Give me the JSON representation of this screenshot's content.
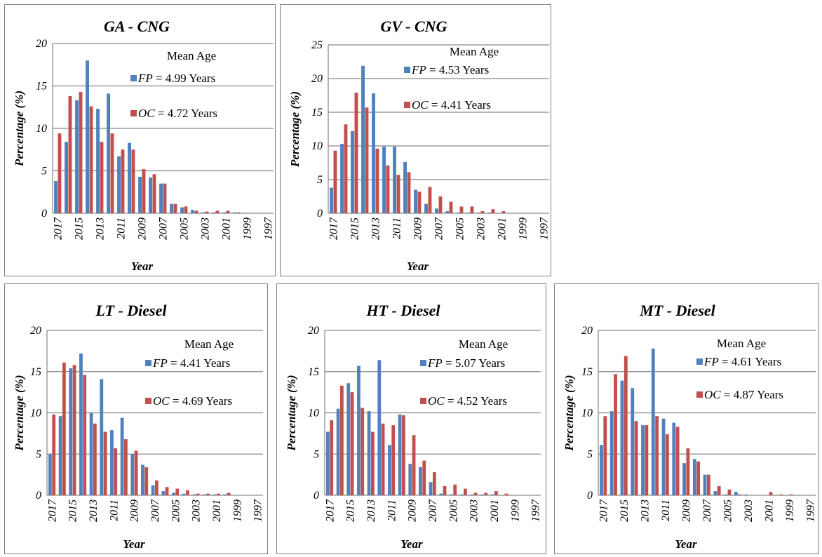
{
  "chart_data": [
    {
      "type": "bar",
      "title": "GA - CNG",
      "xlabel": "Year",
      "ylabel": "Percentage (%)",
      "ylim": [
        0,
        20
      ],
      "yticks": [
        "0",
        "5",
        "10",
        "15",
        "20"
      ],
      "grid": "horizontal",
      "categories": [
        "2017",
        "2016",
        "2015",
        "2014",
        "2013",
        "2012",
        "2011",
        "2010",
        "2009",
        "2008",
        "2007",
        "2006",
        "2005",
        "2004",
        "2003",
        "2002",
        "2001",
        "2000",
        "1999",
        "1998",
        "1997"
      ],
      "xticks_shown": [
        "2017",
        "2015",
        "2013",
        "2011",
        "2009",
        "2007",
        "2005",
        "2003",
        "2001",
        "1999",
        "1997"
      ],
      "series": [
        {
          "name": "FP",
          "color": "#4f81bd",
          "values": [
            3.8,
            8.4,
            13.3,
            18.0,
            12.3,
            14.1,
            6.7,
            8.3,
            4.3,
            4.2,
            3.5,
            1.1,
            0.7,
            0.4,
            0.1,
            0.1,
            0.1,
            0.1,
            0.0,
            0.0,
            0.0
          ]
        },
        {
          "name": "OC",
          "color": "#c0504d",
          "values": [
            9.4,
            13.8,
            14.3,
            12.6,
            8.4,
            9.4,
            7.5,
            7.5,
            5.2,
            4.6,
            3.5,
            1.1,
            0.8,
            0.3,
            0.2,
            0.3,
            0.3,
            0.1,
            0.0,
            0.0,
            0.0
          ]
        }
      ],
      "legend": {
        "position": "top-right",
        "heading": "Mean Age",
        "entries": [
          {
            "key": "FP",
            "text": "= 4.99 Years"
          },
          {
            "key": "OC",
            "text": "= 4.72 Years"
          }
        ]
      }
    },
    {
      "type": "bar",
      "title": "GV - CNG",
      "xlabel": "Year",
      "ylabel": "Percentage (%)",
      "ylim": [
        0,
        25
      ],
      "yticks": [
        "0",
        "5",
        "10",
        "15",
        "20",
        "25"
      ],
      "grid": "horizontal",
      "categories": [
        "2017",
        "2016",
        "2015",
        "2014",
        "2013",
        "2012",
        "2011",
        "2010",
        "2009",
        "2008",
        "2007",
        "2006",
        "2005",
        "2004",
        "2003",
        "2002",
        "2001",
        "2000",
        "1999",
        "1998",
        "1997"
      ],
      "xticks_shown": [
        "2017",
        "2015",
        "2013",
        "2011",
        "2009",
        "2007",
        "2005",
        "2003",
        "2001",
        "1999",
        "1997"
      ],
      "series": [
        {
          "name": "FP",
          "color": "#4f81bd",
          "values": [
            3.8,
            10.3,
            12.2,
            21.9,
            17.8,
            9.9,
            9.9,
            7.6,
            3.5,
            1.4,
            0.7,
            0.3,
            0.1,
            0.1,
            0.1,
            0.1,
            0.0,
            0.0,
            0.0,
            0.0,
            0.0
          ]
        },
        {
          "name": "OC",
          "color": "#c0504d",
          "values": [
            9.3,
            13.2,
            17.9,
            15.7,
            9.6,
            7.1,
            5.7,
            6.1,
            3.2,
            3.9,
            2.5,
            1.7,
            1.0,
            1.0,
            0.3,
            0.6,
            0.3,
            0.0,
            0.0,
            0.0,
            0.0
          ]
        }
      ],
      "legend": {
        "position": "top-right",
        "heading": "Mean Age",
        "entries": [
          {
            "key": "FP",
            "text": "= 4.53 Years"
          },
          {
            "key": "OC",
            "text": "= 4.41 Years"
          }
        ]
      }
    },
    {
      "type": "bar",
      "title": "LT - Diesel",
      "xlabel": "Year",
      "ylabel": "Percentage (%)",
      "ylim": [
        0,
        20
      ],
      "yticks": [
        "0",
        "5",
        "10",
        "15",
        "20"
      ],
      "grid": "horizontal",
      "categories": [
        "2017",
        "2016",
        "2015",
        "2014",
        "2013",
        "2012",
        "2011",
        "2010",
        "2009",
        "2008",
        "2007",
        "2006",
        "2005",
        "2004",
        "2003",
        "2002",
        "2001",
        "2000",
        "1999",
        "1998",
        "1997"
      ],
      "xticks_shown": [
        "2017",
        "2015",
        "2013",
        "2011",
        "2009",
        "2007",
        "2005",
        "2003",
        "2001",
        "1999",
        "1997"
      ],
      "series": [
        {
          "name": "FP",
          "color": "#4f81bd",
          "values": [
            5.0,
            9.6,
            15.4,
            17.2,
            10.0,
            14.1,
            7.9,
            9.4,
            5.0,
            3.7,
            1.2,
            0.5,
            0.3,
            0.2,
            0.1,
            0.1,
            0.1,
            0.1,
            0.0,
            0.0,
            0.0
          ]
        },
        {
          "name": "OC",
          "color": "#c0504d",
          "values": [
            9.8,
            16.1,
            15.8,
            14.6,
            8.7,
            7.7,
            5.7,
            6.8,
            5.4,
            3.4,
            1.8,
            1.0,
            0.8,
            0.6,
            0.2,
            0.2,
            0.2,
            0.3,
            0.0,
            0.0,
            0.0
          ]
        }
      ],
      "legend": {
        "position": "top-right",
        "heading": "Mean Age",
        "entries": [
          {
            "key": "FP",
            "text": "= 4.41 Years"
          },
          {
            "key": "OC",
            "text": "= 4.69 Years"
          }
        ]
      }
    },
    {
      "type": "bar",
      "title": "HT - Diesel",
      "xlabel": "Year",
      "ylabel": "Percentage (%)",
      "ylim": [
        0,
        20
      ],
      "yticks": [
        "0",
        "5",
        "10",
        "15",
        "20"
      ],
      "grid": "horizontal",
      "categories": [
        "2017",
        "2016",
        "2015",
        "2014",
        "2013",
        "2012",
        "2011",
        "2010",
        "2009",
        "2008",
        "2007",
        "2006",
        "2005",
        "2004",
        "2003",
        "2002",
        "2001",
        "2000",
        "1999",
        "1998",
        "1997"
      ],
      "xticks_shown": [
        "2017",
        "2015",
        "2013",
        "2011",
        "2009",
        "2007",
        "2005",
        "2003",
        "2001",
        "1999",
        "1997"
      ],
      "series": [
        {
          "name": "FP",
          "color": "#4f81bd",
          "values": [
            7.7,
            10.5,
            13.6,
            15.7,
            10.2,
            16.4,
            6.1,
            9.8,
            3.8,
            3.4,
            1.6,
            0.2,
            0.1,
            0.1,
            0.1,
            0.1,
            0.1,
            0.0,
            0.0,
            0.0,
            0.0
          ]
        },
        {
          "name": "OC",
          "color": "#c0504d",
          "values": [
            9.1,
            13.3,
            12.5,
            10.6,
            7.7,
            8.7,
            8.5,
            9.7,
            7.3,
            4.2,
            2.8,
            1.1,
            1.3,
            0.8,
            0.3,
            0.3,
            0.5,
            0.2,
            0.0,
            0.0,
            0.0
          ]
        }
      ],
      "legend": {
        "position": "top-right",
        "heading": "Mean Age",
        "entries": [
          {
            "key": "FP",
            "text": "= 5.07 Years"
          },
          {
            "key": "OC",
            "text": "= 4.52 Years"
          }
        ]
      }
    },
    {
      "type": "bar",
      "title": "MT - Diesel",
      "xlabel": "Year",
      "ylabel": "Percentage (%)",
      "ylim": [
        0,
        20
      ],
      "yticks": [
        "0",
        "5",
        "10",
        "15",
        "20"
      ],
      "grid": "horizontal",
      "categories": [
        "2017",
        "2016",
        "2015",
        "2014",
        "2013",
        "2012",
        "2011",
        "2010",
        "2009",
        "2008",
        "2007",
        "2006",
        "2005",
        "2004",
        "2003",
        "2002",
        "2001",
        "2000",
        "1999",
        "1998",
        "1997"
      ],
      "xticks_shown": [
        "2017",
        "2015",
        "2013",
        "2011",
        "2009",
        "2007",
        "2005",
        "2003",
        "2001",
        "1999",
        "1997"
      ],
      "series": [
        {
          "name": "FP",
          "color": "#4f81bd",
          "values": [
            6.1,
            10.2,
            13.9,
            13.0,
            8.5,
            17.8,
            9.3,
            8.8,
            3.9,
            4.4,
            2.5,
            0.5,
            0.1,
            0.4,
            0.1,
            0.0,
            0.0,
            0.0,
            0.0,
            0.0,
            0.0
          ]
        },
        {
          "name": "OC",
          "color": "#c0504d",
          "values": [
            9.6,
            14.7,
            16.9,
            9.0,
            8.5,
            9.6,
            7.4,
            8.3,
            5.7,
            4.1,
            2.5,
            1.1,
            0.7,
            0.1,
            0.0,
            0.0,
            0.4,
            0.1,
            0.1,
            0.0,
            0.0
          ]
        }
      ],
      "legend": {
        "position": "top-right",
        "heading": "Mean Age",
        "entries": [
          {
            "key": "FP",
            "text": "= 4.61 Years"
          },
          {
            "key": "OC",
            "text": "= 4.87 Years"
          }
        ]
      }
    }
  ]
}
